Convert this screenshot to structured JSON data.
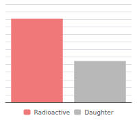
{
  "chart_data": {
    "type": "bar",
    "categories": [
      "Radioactive",
      "Daughter"
    ],
    "values": [
      85,
      42
    ],
    "colors": [
      "#f07878",
      "#b8b8b8"
    ],
    "ylim": [
      0,
      100
    ],
    "yticks": [
      0,
      7.6923076923076925,
      15.384615384615385,
      23.076923076923077,
      30.76923076923077,
      38.46153846153846,
      46.15384615384615,
      53.84615384615385,
      61.53846153846154,
      69.23076923076923,
      76.92307692307692,
      84.61538461538461,
      92.3076923076923,
      100
    ],
    "grid": true,
    "tick_labels": false,
    "legend": "bottom"
  }
}
